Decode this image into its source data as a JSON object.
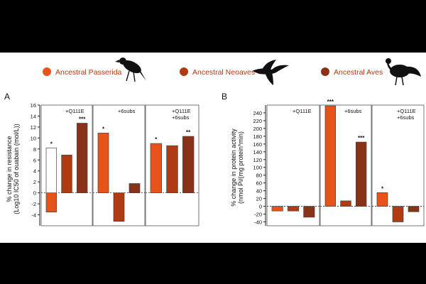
{
  "colors": {
    "passerida": "#E8531A",
    "neoaves": "#B03A12",
    "aves": "#8A3218",
    "open": "#FFFFFF",
    "outline": "#444444"
  },
  "legend": {
    "items": [
      {
        "label": "Ancestral Passerida",
        "color_key": "passerida",
        "bird": "songbird-icon"
      },
      {
        "label": "Ancestral Neoaves",
        "color_key": "neoaves",
        "bird": "flying-bird-icon"
      },
      {
        "label": "Ancestral Aves",
        "color_key": "aves",
        "bird": "galliform-bird-icon"
      }
    ]
  },
  "chart_data": [
    {
      "type": "bar",
      "panel_label": "A",
      "ylabel_line1": "% change in resistance",
      "ylabel_line2": "(Log10 IC50 of ouabain (mol/L))",
      "ylim": [
        -6,
        16
      ],
      "yticks": [
        -4,
        -2,
        0,
        2,
        4,
        6,
        8,
        10,
        12,
        14,
        16
      ],
      "tick_labels": [
        "-4",
        "-2",
        "0",
        "2",
        "4",
        "6",
        "8",
        "10",
        "12",
        "14",
        "16"
      ],
      "groups": [
        {
          "labels": [
            "+Q111E"
          ],
          "bars": [
            {
              "series": "passerida",
              "value": -3.5,
              "sig": ""
            },
            {
              "series": "passerida_open",
              "value": 8.2,
              "sig": "*"
            },
            {
              "series": "neoaves",
              "value": 6.9,
              "sig": ""
            },
            {
              "series": "aves",
              "value": 12.7,
              "sig": "***"
            }
          ]
        },
        {
          "labels": [
            "+6subs"
          ],
          "bars": [
            {
              "series": "passerida",
              "value": 10.9,
              "sig": "*"
            },
            {
              "series": "neoaves",
              "value": -5.2,
              "sig": ""
            },
            {
              "series": "aves",
              "value": 1.7,
              "sig": ""
            }
          ]
        },
        {
          "labels": [
            "+Q111E",
            "+6subs"
          ],
          "bars": [
            {
              "series": "passerida",
              "value": 9.0,
              "sig": "*"
            },
            {
              "series": "neoaves",
              "value": 8.6,
              "sig": ""
            },
            {
              "series": "aves",
              "value": 10.3,
              "sig": "**"
            }
          ]
        }
      ]
    },
    {
      "type": "bar",
      "panel_label": "B",
      "ylabel_line1": "% change in protein activity",
      "ylabel_line2": "(nmol Pi/(mg protein*min)",
      "ylim": [
        -50,
        260
      ],
      "yticks": [
        -40,
        -20,
        0,
        20,
        40,
        60,
        80,
        100,
        120,
        140,
        160,
        180,
        200,
        220,
        240
      ],
      "tick_labels": [
        "-40",
        "-20",
        "0",
        "20",
        "40",
        "60",
        "80",
        "100",
        "120",
        "140",
        "160",
        "180",
        "200",
        "220",
        "240"
      ],
      "groups": [
        {
          "labels": [
            "+Q111E"
          ],
          "bars": [
            {
              "series": "passerida",
              "value": -12,
              "sig": ""
            },
            {
              "series": "neoaves",
              "value": -12,
              "sig": ""
            },
            {
              "series": "aves",
              "value": -28,
              "sig": ""
            }
          ]
        },
        {
          "labels": [
            "+6subs"
          ],
          "bars": [
            {
              "series": "passerida",
              "value": 258,
              "sig": "***"
            },
            {
              "series": "neoaves",
              "value": 14,
              "sig": ""
            },
            {
              "series": "aves",
              "value": 165,
              "sig": "***"
            }
          ]
        },
        {
          "labels": [
            "+Q111E",
            "+6subs"
          ],
          "bars": [
            {
              "series": "passerida",
              "value": 35,
              "sig": "*"
            },
            {
              "series": "neoaves",
              "value": -40,
              "sig": ""
            },
            {
              "series": "aves",
              "value": -14,
              "sig": ""
            }
          ]
        }
      ]
    }
  ]
}
